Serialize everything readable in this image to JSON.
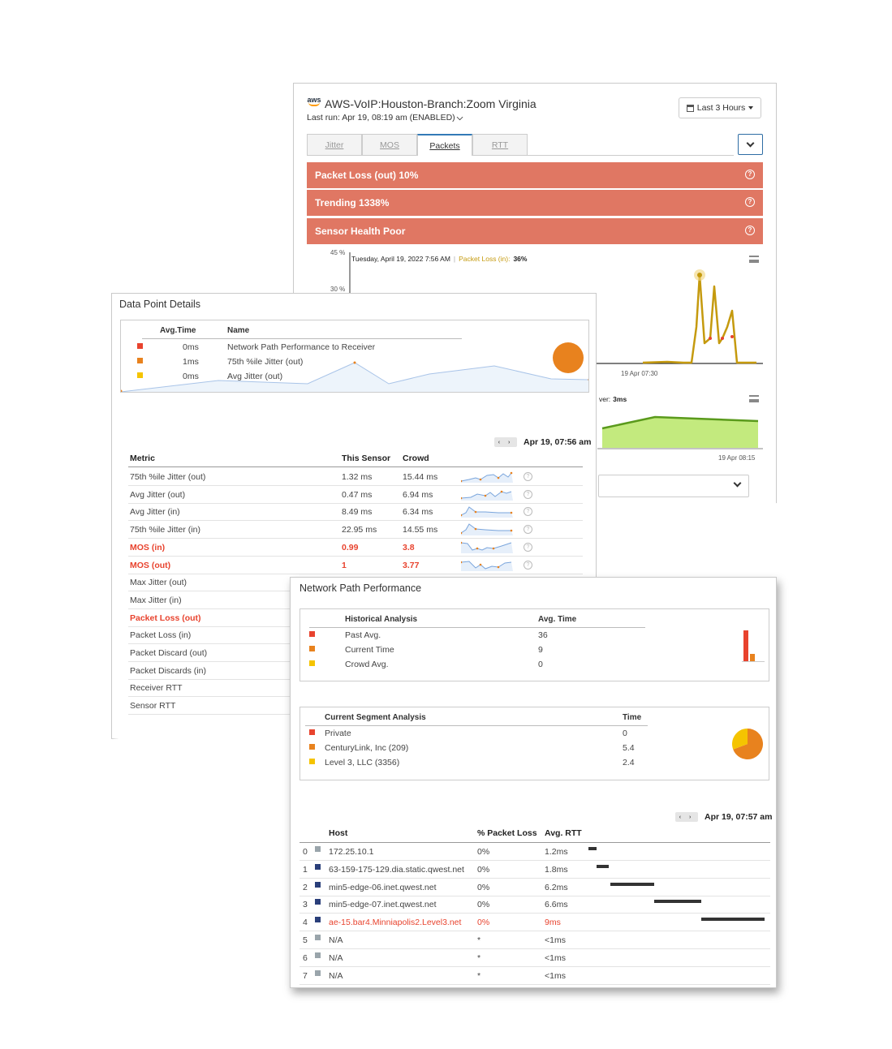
{
  "sensor": {
    "title": "AWS-VoIP:Houston-Branch:Zoom Virginia",
    "last_run": "Last run: Apr 19, 08:19 am (ENABLED)",
    "range_button": "Last 3 Hours",
    "tabs": [
      {
        "label": "Jitter",
        "active": false
      },
      {
        "label": "MOS",
        "active": false
      },
      {
        "label": "Packets",
        "active": true
      },
      {
        "label": "RTT",
        "active": false
      }
    ],
    "alerts": [
      {
        "label": "Packet Loss (out) 10%",
        "color": "#e07763"
      },
      {
        "label": "Trending 1338%",
        "color": "#e07763"
      },
      {
        "label": "Sensor Health Poor",
        "color": "#e07763"
      }
    ],
    "chart1": {
      "tooltip_date": "Tuesday, April 19, 2022 7:56 AM",
      "tooltip_sep": "|",
      "tooltip_series": "Packet Loss (in):",
      "tooltip_value": "36%",
      "y_ticks": [
        "45 %",
        "30 %"
      ],
      "x_tick": "19 Apr 07:30",
      "series_color": "#c59a0e"
    },
    "chart2": {
      "tooltip_fragment": "ver:",
      "tooltip_value": "3ms",
      "x_tick": "19 Apr 08:15",
      "fill_color": "#c3ea7e",
      "line_color": "#5a9a1c"
    }
  },
  "details": {
    "title": "Data Point Details",
    "legend": {
      "headers": {
        "time": "Avg.Time",
        "name": "Name"
      },
      "rows": [
        {
          "time": "0ms",
          "name": "Network Path Performance to Receiver",
          "color": "#e8432e"
        },
        {
          "time": "1ms",
          "name": "75th %ile Jitter (out)",
          "color": "#e8821e"
        },
        {
          "time": "0ms",
          "name": "Avg Jitter (out)",
          "color": "#f5c400"
        }
      ],
      "dot_color": "#e8821e"
    },
    "timestamp": "Apr 19, 07:56 am",
    "nav": "‹ ›",
    "table": {
      "headers": {
        "metric": "Metric",
        "sensor": "This Sensor",
        "crowd": "Crowd"
      },
      "rows": [
        {
          "metric": "75th %ile Jitter (out)",
          "sensor": "1.32 ms",
          "crowd": "15.44 ms",
          "alert": false
        },
        {
          "metric": "Avg Jitter (out)",
          "sensor": "0.47 ms",
          "crowd": "6.94 ms",
          "alert": false
        },
        {
          "metric": "Avg Jitter (in)",
          "sensor": "8.49 ms",
          "crowd": "6.34 ms",
          "alert": false
        },
        {
          "metric": "75th %ile Jitter (in)",
          "sensor": "22.95 ms",
          "crowd": "14.55 ms",
          "alert": false
        },
        {
          "metric": "MOS (in)",
          "sensor": "0.99",
          "crowd": "3.8",
          "alert": true
        },
        {
          "metric": "MOS (out)",
          "sensor": "1",
          "crowd": "3.77",
          "alert": true
        },
        {
          "metric": "Max Jitter (out)",
          "sensor": "",
          "crowd": "",
          "alert": false
        },
        {
          "metric": "Max Jitter (in)",
          "sensor": "",
          "crowd": "",
          "alert": false
        },
        {
          "metric": "Packet Loss (out)",
          "sensor": "",
          "crowd": "",
          "alert": true
        },
        {
          "metric": "Packet Loss (in)",
          "sensor": "",
          "crowd": "",
          "alert": false
        },
        {
          "metric": "Packet Discard (out)",
          "sensor": "",
          "crowd": "",
          "alert": false
        },
        {
          "metric": "Packet Discards (in)",
          "sensor": "",
          "crowd": "",
          "alert": false
        },
        {
          "metric": "Receiver RTT",
          "sensor": "",
          "crowd": "",
          "alert": false
        },
        {
          "metric": "Sensor RTT",
          "sensor": "",
          "crowd": "",
          "alert": false
        }
      ]
    }
  },
  "network": {
    "title": "Network Path Performance",
    "historical": {
      "headers": {
        "name": "Historical Analysis",
        "value": "Avg. Time"
      },
      "rows": [
        {
          "name": "Past Avg.",
          "value": "36",
          "color": "#e8432e"
        },
        {
          "name": "Current Time",
          "value": "9",
          "color": "#e8821e"
        },
        {
          "name": "Crowd Avg.",
          "value": "0",
          "color": "#f5c400"
        }
      ]
    },
    "segments": {
      "headers": {
        "name": "Current Segment Analysis",
        "value": "Time"
      },
      "rows": [
        {
          "name": "Private",
          "value": "0",
          "color": "#e8432e"
        },
        {
          "name": "CenturyLink, Inc (209)",
          "value": "5.4",
          "color": "#e8821e"
        },
        {
          "name": "Level 3, LLC (3356)",
          "value": "2.4",
          "color": "#f5c400"
        }
      ]
    },
    "timestamp": "Apr 19, 07:57 am",
    "nav": "‹ ›",
    "hosts": {
      "headers": {
        "host": "Host",
        "loss": "% Packet Loss",
        "rtt": "Avg. RTT"
      },
      "rows": [
        {
          "idx": "0",
          "host": "172.25.10.1",
          "loss": "0%",
          "rtt": "1.2ms",
          "color": "#9aa5ab",
          "alert": false
        },
        {
          "idx": "1",
          "host": "63-159-175-129.dia.static.qwest.net",
          "loss": "0%",
          "rtt": "1.8ms",
          "color": "#2a3f7a",
          "alert": false
        },
        {
          "idx": "2",
          "host": "min5-edge-06.inet.qwest.net",
          "loss": "0%",
          "rtt": "6.2ms",
          "color": "#2a3f7a",
          "alert": false
        },
        {
          "idx": "3",
          "host": "min5-edge-07.inet.qwest.net",
          "loss": "0%",
          "rtt": "6.6ms",
          "color": "#2a3f7a",
          "alert": false
        },
        {
          "idx": "4",
          "host": "ae-15.bar4.Minniapolis2.Level3.net",
          "loss": "0%",
          "rtt": "9ms",
          "color": "#2a3f7a",
          "alert": true
        },
        {
          "idx": "5",
          "host": "N/A",
          "loss": "*",
          "rtt": "<1ms",
          "color": "#9aa5ab",
          "alert": false
        },
        {
          "idx": "6",
          "host": "N/A",
          "loss": "*",
          "rtt": "<1ms",
          "color": "#9aa5ab",
          "alert": false
        },
        {
          "idx": "7",
          "host": "N/A",
          "loss": "*",
          "rtt": "<1ms",
          "color": "#9aa5ab",
          "alert": false
        }
      ]
    }
  },
  "colors": {
    "alert_red": "#e8432e",
    "banner": "#e07763",
    "link_blue": "#337ab7"
  }
}
